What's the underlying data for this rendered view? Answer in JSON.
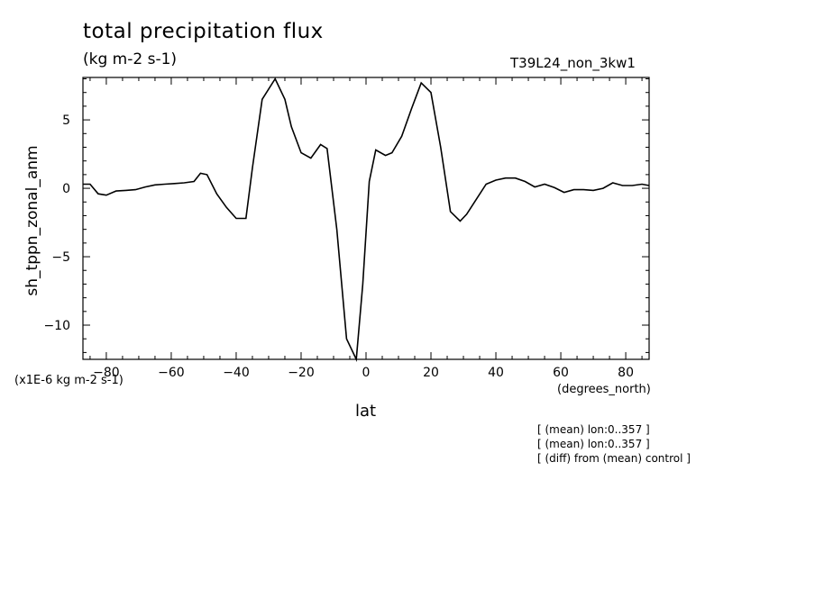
{
  "header": {
    "title": "total precipitation flux",
    "units": "(kg m-2 s-1)",
    "run": "T39L24_non_3kw1"
  },
  "axis_text": {
    "scale": "(x1E-6 kg m-2 s-1)",
    "x_units": "(degrees_north)"
  },
  "notes": [
    "[ (mean) lon:0..357 ]",
    "[ (mean) lon:0..357 ]",
    "[ (diff) from (mean) control ]"
  ],
  "chart_data": {
    "type": "line",
    "title": "total precipitation flux",
    "xlabel": "lat",
    "ylabel": "sh_tppn_zonal_anm",
    "xlim": [
      -87.2,
      87.2
    ],
    "ylim": [
      -12.5,
      8.1
    ],
    "xticks": [
      -80,
      -60,
      -40,
      -20,
      0,
      20,
      40,
      60,
      80
    ],
    "yticks": [
      5,
      0,
      -5,
      -10
    ],
    "grid": false,
    "line_color": "#000000",
    "series": [
      {
        "x": [
          -87.2,
          -85,
          -82.5,
          -80,
          -77,
          -74,
          -71,
          -68,
          -65,
          -62,
          -59,
          -56,
          -53,
          -51,
          -49,
          -46,
          -43,
          -40,
          -37,
          -35,
          -32,
          -28,
          -25,
          -23,
          -20,
          -17,
          -14,
          -12,
          -9,
          -6,
          -3,
          -1,
          1,
          3,
          6,
          8,
          11,
          14,
          17,
          20,
          23,
          26,
          29,
          31,
          34,
          37,
          40,
          43,
          46,
          49,
          52,
          55,
          58,
          61,
          64,
          67,
          70,
          73,
          76,
          79,
          82,
          85,
          87.2
        ],
        "y": [
          0.3,
          0.3,
          -0.4,
          -0.5,
          -0.2,
          -0.15,
          -0.1,
          0.1,
          0.25,
          0.3,
          0.35,
          0.4,
          0.5,
          1.1,
          1.0,
          -0.4,
          -1.4,
          -2.2,
          -2.2,
          1.5,
          6.5,
          8.0,
          6.5,
          4.5,
          2.6,
          2.2,
          3.2,
          2.9,
          -3.0,
          -11.0,
          -12.5,
          -7.0,
          0.5,
          2.8,
          2.4,
          2.6,
          3.8,
          5.8,
          7.7,
          7.0,
          3.0,
          -1.7,
          -2.4,
          -1.9,
          -0.8,
          0.3,
          0.6,
          0.75,
          0.75,
          0.5,
          0.1,
          0.3,
          0.05,
          -0.3,
          -0.1,
          -0.1,
          -0.15,
          0.0,
          0.4,
          0.2,
          0.2,
          0.3,
          0.2
        ]
      }
    ]
  }
}
